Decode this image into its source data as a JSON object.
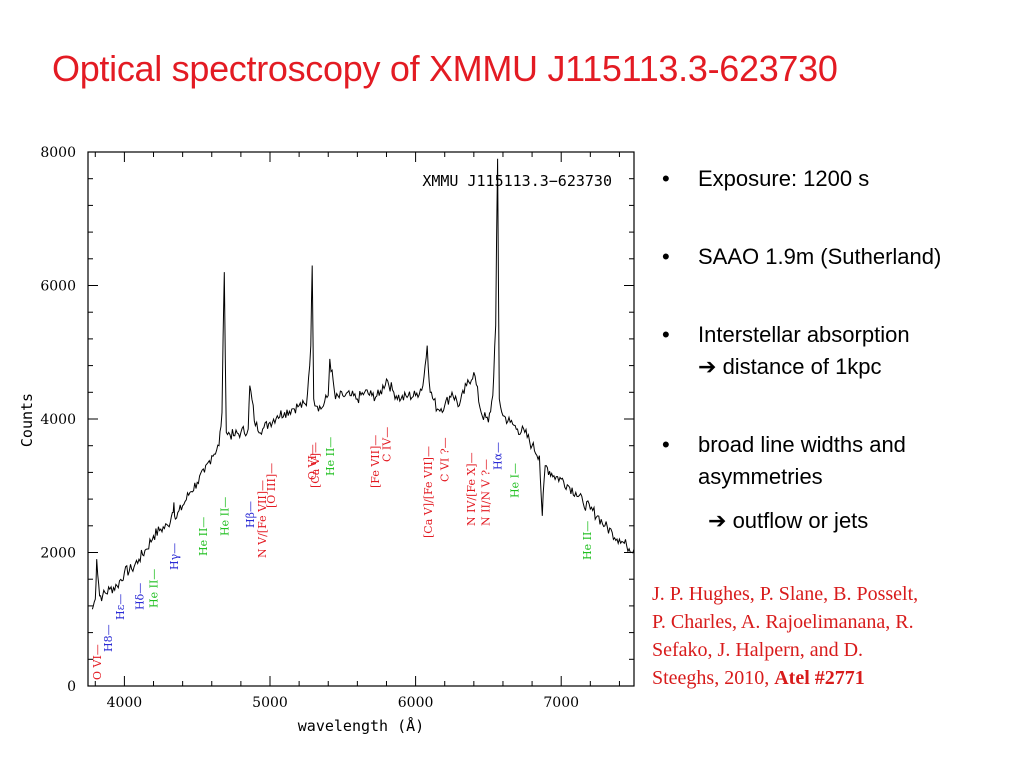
{
  "slide": {
    "title": "Optical spectroscopy of XMMU J115113.3-623730"
  },
  "bullets": [
    {
      "id": "exposure",
      "text": "Exposure: 1200 s"
    },
    {
      "id": "telescope",
      "text": "SAAO 1.9m (Sutherland)"
    },
    {
      "id": "absorption",
      "text": "Interstellar absorption",
      "sub": "distance of  1kpc"
    },
    {
      "id": "linewidths",
      "text": "broad line widths and",
      "text2": "asymmetries",
      "sub": "outflow or jets"
    }
  ],
  "bullet_symbol": "•",
  "arrow_symbol": "➔",
  "citation": {
    "line1": "J. P. Hughes, P. Slane, B. Posselt,",
    "line2": "P. Charles, A. Rajoelimanana, R.",
    "line3": "Sefako,  J. Halpern, and D.",
    "line4_plain": "Steeghs,  2010, ",
    "line4_bold": "Atel  #2771"
  },
  "colors": {
    "title": "#e31b23",
    "citation": "#d81b1b",
    "label_red": "#e31b23",
    "label_blue": "#2b2bd4",
    "label_green": "#22c022",
    "spectrum": "#000000"
  },
  "chart_data": {
    "type": "line",
    "title": "XMMU J115113.3−623730",
    "xlabel": "wavelength (Å)",
    "ylabel": "Counts",
    "xlim": [
      3750,
      7500
    ],
    "ylim": [
      0,
      8000
    ],
    "x_ticks": [
      4000,
      5000,
      6000,
      7000
    ],
    "y_ticks": [
      0,
      2000,
      4000,
      6000,
      8000
    ],
    "x": [
      3780,
      3800,
      3810,
      3830,
      3850,
      3900,
      3950,
      4000,
      4050,
      4100,
      4150,
      4200,
      4250,
      4300,
      4330,
      4340,
      4350,
      4400,
      4450,
      4500,
      4550,
      4600,
      4650,
      4670,
      4686,
      4700,
      4750,
      4800,
      4850,
      4861,
      4900,
      4950,
      5000,
      5050,
      5100,
      5150,
      5200,
      5250,
      5280,
      5290,
      5300,
      5350,
      5400,
      5411,
      5450,
      5500,
      5550,
      5600,
      5650,
      5700,
      5750,
      5800,
      5850,
      5900,
      5950,
      6000,
      6050,
      6080,
      6100,
      6150,
      6200,
      6250,
      6300,
      6350,
      6400,
      6450,
      6500,
      6530,
      6550,
      6563,
      6575,
      6600,
      6650,
      6700,
      6750,
      6800,
      6850,
      6870,
      6890,
      6950,
      7000,
      7050,
      7100,
      7150,
      7200,
      7250,
      7300,
      7350,
      7400,
      7450,
      7500
    ],
    "y": [
      1150,
      1300,
      1900,
      1350,
      1350,
      1450,
      1500,
      1700,
      1750,
      1900,
      2050,
      2250,
      2350,
      2400,
      2600,
      2750,
      2500,
      2700,
      2900,
      3050,
      3200,
      3450,
      3600,
      4100,
      6200,
      3800,
      3750,
      3800,
      3850,
      4500,
      3900,
      3850,
      3950,
      4050,
      4100,
      4150,
      4200,
      4200,
      5100,
      6300,
      4300,
      4150,
      4350,
      4900,
      4300,
      4350,
      4350,
      4300,
      4400,
      4350,
      4350,
      4600,
      4400,
      4300,
      4350,
      4350,
      4500,
      5100,
      4400,
      4150,
      4200,
      4400,
      4200,
      4500,
      4700,
      4100,
      3950,
      4350,
      5400,
      7900,
      4300,
      4050,
      3950,
      3850,
      3800,
      3600,
      3450,
      2550,
      3300,
      3150,
      3100,
      3000,
      2900,
      2750,
      2650,
      2550,
      2400,
      2300,
      2200,
      2100,
      2050
    ],
    "line_labels": [
      {
        "text": "O VI",
        "wavelength": 3811,
        "color": "red"
      },
      {
        "text": "H8",
        "wavelength": 3889,
        "color": "blue"
      },
      {
        "text": "Hε",
        "wavelength": 3970,
        "color": "blue"
      },
      {
        "text": "Hδ",
        "wavelength": 4102,
        "color": "blue"
      },
      {
        "text": "He II",
        "wavelength": 4200,
        "color": "green"
      },
      {
        "text": "Hγ",
        "wavelength": 4340,
        "color": "blue"
      },
      {
        "text": "He II",
        "wavelength": 4541,
        "color": "green"
      },
      {
        "text": "He II",
        "wavelength": 4686,
        "color": "green"
      },
      {
        "text": "Hβ",
        "wavelength": 4861,
        "color": "blue"
      },
      {
        "text": "N V/[Fe VII]",
        "wavelength": 4945,
        "color": "red"
      },
      {
        "text": "[O III]",
        "wavelength": 5007,
        "color": "red"
      },
      {
        "text": "O VI",
        "wavelength": 5290,
        "color": "red"
      },
      {
        "text": "He II",
        "wavelength": 5411,
        "color": "green"
      },
      {
        "text": "[Ca V]",
        "wavelength": 5309,
        "color": "red"
      },
      {
        "text": "[Fe VII]",
        "wavelength": 5721,
        "color": "red"
      },
      {
        "text": "C IV",
        "wavelength": 5801,
        "color": "red"
      },
      {
        "text": "[Ca V]/[Fe VII]",
        "wavelength": 6086,
        "color": "red"
      },
      {
        "text": "C VI ?",
        "wavelength": 6200,
        "color": "red"
      },
      {
        "text": "N IV/[Fe X]",
        "wavelength": 6380,
        "color": "red"
      },
      {
        "text": "N II/N V ?",
        "wavelength": 6480,
        "color": "red"
      },
      {
        "text": "Hα",
        "wavelength": 6563,
        "color": "blue"
      },
      {
        "text": "He I",
        "wavelength": 6678,
        "color": "green"
      },
      {
        "text": "He II",
        "wavelength": 7177,
        "color": "green"
      }
    ]
  }
}
